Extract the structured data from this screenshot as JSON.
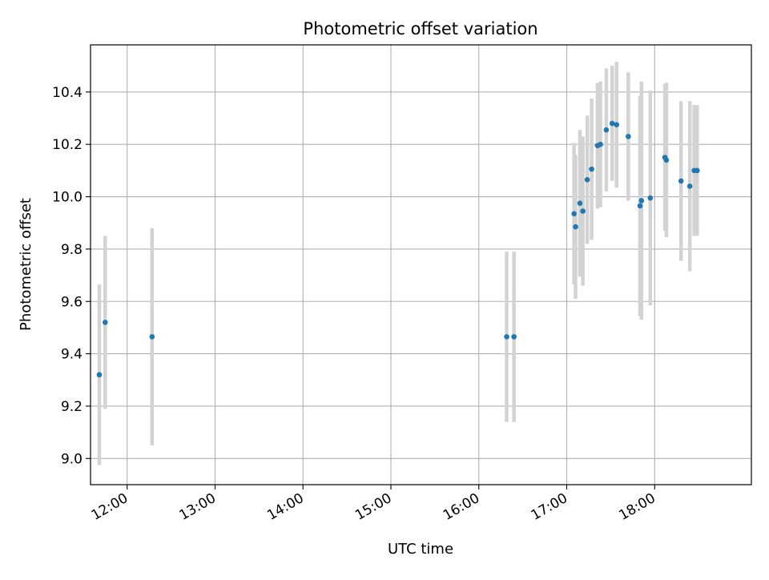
{
  "chart_data": {
    "type": "scatter",
    "title": "Photometric offset variation",
    "xlabel": "UTC time",
    "ylabel": "Photometric offset",
    "x_axis_type": "time",
    "xlim": [
      "11:35",
      "19:06"
    ],
    "ylim": [
      8.9,
      10.58
    ],
    "x_ticks": [
      "12:00",
      "13:00",
      "14:00",
      "15:00",
      "16:00",
      "17:00",
      "18:00"
    ],
    "y_ticks": [
      "9.0",
      "9.2",
      "9.4",
      "9.6",
      "9.8",
      "10.0",
      "10.2",
      "10.4"
    ],
    "grid": true,
    "legend": "none",
    "colors": {
      "point": "#1f77b4",
      "errorbar": "#d3d3d3",
      "grid": "#b0b0b0"
    },
    "points": [
      {
        "x": "11:41",
        "y": 9.32,
        "yerr": 0.345
      },
      {
        "x": "11:45",
        "y": 9.52,
        "yerr": 0.33
      },
      {
        "x": "12:17",
        "y": 9.465,
        "yerr": 0.415
      },
      {
        "x": "16:19",
        "y": 9.465,
        "yerr": 0.325
      },
      {
        "x": "16:24",
        "y": 9.465,
        "yerr": 0.325
      },
      {
        "x": "17:05",
        "y": 9.935,
        "yerr": 0.27
      },
      {
        "x": "17:06",
        "y": 9.885,
        "yerr": 0.275
      },
      {
        "x": "17:09",
        "y": 9.975,
        "yerr": 0.28
      },
      {
        "x": "17:11",
        "y": 9.945,
        "yerr": 0.285
      },
      {
        "x": "17:14",
        "y": 10.065,
        "yerr": 0.245
      },
      {
        "x": "17:17",
        "y": 10.105,
        "yerr": 0.27
      },
      {
        "x": "17:21",
        "y": 10.195,
        "yerr": 0.24
      },
      {
        "x": "17:23",
        "y": 10.2,
        "yerr": 0.24
      },
      {
        "x": "17:27",
        "y": 10.255,
        "yerr": 0.235
      },
      {
        "x": "17:31",
        "y": 10.28,
        "yerr": 0.22
      },
      {
        "x": "17:34",
        "y": 10.275,
        "yerr": 0.24
      },
      {
        "x": "17:42",
        "y": 10.23,
        "yerr": 0.245
      },
      {
        "x": "17:50",
        "y": 9.965,
        "yerr": 0.42
      },
      {
        "x": "17:51",
        "y": 9.985,
        "yerr": 0.455
      },
      {
        "x": "17:57",
        "y": 9.995,
        "yerr": 0.41
      },
      {
        "x": "18:07",
        "y": 10.15,
        "yerr": 0.28
      },
      {
        "x": "18:08",
        "y": 10.14,
        "yerr": 0.295
      },
      {
        "x": "18:18",
        "y": 10.06,
        "yerr": 0.305
      },
      {
        "x": "18:24",
        "y": 10.04,
        "yerr": 0.325
      },
      {
        "x": "18:27",
        "y": 10.1,
        "yerr": 0.25
      },
      {
        "x": "18:29",
        "y": 10.1,
        "yerr": 0.25
      }
    ]
  }
}
